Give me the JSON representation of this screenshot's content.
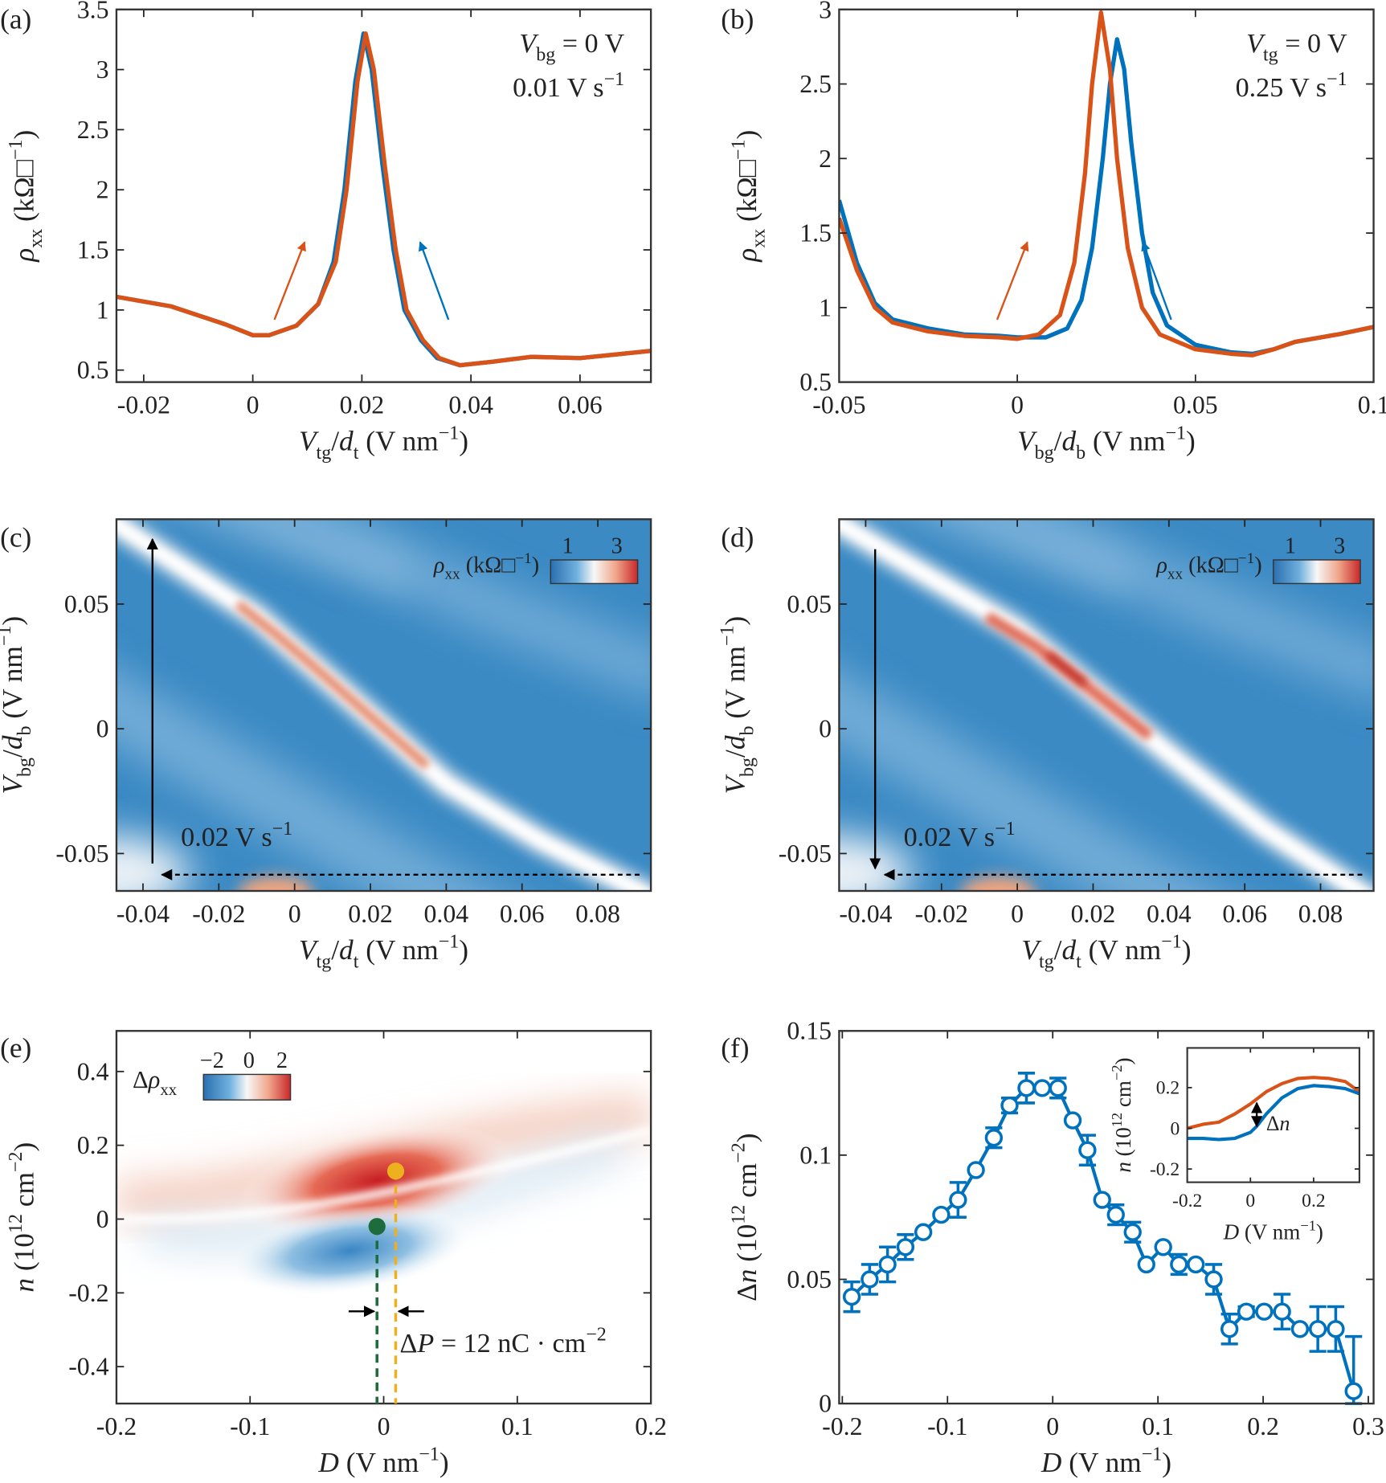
{
  "figure": {
    "panel_labels": [
      "(a)",
      "(b)",
      "(c)",
      "(d)",
      "(e)",
      "(f)"
    ]
  },
  "chart_data": [
    {
      "id": "a",
      "type": "line",
      "xlim": [
        -0.025,
        0.073
      ],
      "ylim": [
        0.4,
        3.5
      ],
      "xticks": [
        -0.02,
        0,
        0.02,
        0.04,
        0.06
      ],
      "xtick_labels": [
        "-0.02",
        "0",
        "0.02",
        "0.04",
        "0.06"
      ],
      "yticks": [
        0.5,
        1,
        1.5,
        2,
        2.5,
        3,
        3.5
      ],
      "ytick_labels": [
        "0.5",
        "1",
        "1.5",
        "2",
        "2.5",
        "3",
        "3.5"
      ],
      "xlabel": [
        [
          "V",
          "i"
        ],
        [
          "tg",
          "sub"
        ],
        [
          "/",
          ""
        ],
        [
          "d",
          "i"
        ],
        [
          "t",
          "sub"
        ],
        [
          "  (V nm",
          ""
        ],
        [
          "−1",
          "sup"
        ],
        [
          ")",
          ""
        ]
      ],
      "ylabel": [
        [
          "ρ",
          "i"
        ],
        [
          "xx",
          "sub"
        ],
        [
          "  (kΩ□",
          ""
        ],
        [
          "−1",
          "sup"
        ],
        [
          ")",
          ""
        ]
      ],
      "annotations": [
        [
          [
            "V",
            "i"
          ],
          [
            "bg",
            "sub"
          ],
          [
            " = 0 V",
            ""
          ]
        ],
        [
          [
            "0.01 V s",
            ""
          ],
          [
            "−1",
            "sup"
          ]
        ]
      ],
      "series": [
        {
          "color": "#0072BD",
          "x": [
            -0.025,
            -0.015,
            -0.005,
            0,
            0.003,
            0.008,
            0.012,
            0.0148,
            0.0168,
            0.0188,
            0.0203,
            0.0218,
            0.0238,
            0.0258,
            0.0278,
            0.0308,
            0.0338,
            0.038,
            0.044,
            0.051,
            0.06,
            0.073
          ],
          "y": [
            1.11,
            1.03,
            0.88,
            0.79,
            0.79,
            0.87,
            1.05,
            1.4,
            2.0,
            2.9,
            3.3,
            3.0,
            2.2,
            1.5,
            1.0,
            0.75,
            0.6,
            0.54,
            0.57,
            0.61,
            0.6,
            0.66
          ]
        },
        {
          "color": "#D95319",
          "x": [
            -0.025,
            -0.015,
            -0.005,
            0,
            0.003,
            0.008,
            0.012,
            0.0152,
            0.0172,
            0.0192,
            0.0207,
            0.0222,
            0.0242,
            0.0262,
            0.0282,
            0.0312,
            0.0342,
            0.038,
            0.044,
            0.051,
            0.06,
            0.073
          ],
          "y": [
            1.11,
            1.03,
            0.88,
            0.79,
            0.79,
            0.87,
            1.05,
            1.4,
            2.0,
            2.9,
            3.3,
            3.0,
            2.2,
            1.5,
            1.0,
            0.75,
            0.6,
            0.54,
            0.57,
            0.61,
            0.6,
            0.66
          ]
        }
      ]
    },
    {
      "id": "b",
      "type": "line",
      "xlim": [
        -0.05,
        0.1
      ],
      "ylim": [
        0.5,
        3
      ],
      "xticks": [
        -0.05,
        0,
        0.05,
        0.1
      ],
      "xtick_labels": [
        "-0.05",
        "0",
        "0.05",
        "0.1"
      ],
      "yticks": [
        0.5,
        1,
        1.5,
        2,
        2.5,
        3
      ],
      "ytick_labels": [
        "0.5",
        "1",
        "1.5",
        "2",
        "2.5",
        "3"
      ],
      "xlabel": [
        [
          "V",
          "i"
        ],
        [
          "bg",
          "sub"
        ],
        [
          "/",
          ""
        ],
        [
          "d",
          "i"
        ],
        [
          "b",
          "sub"
        ],
        [
          "  (V nm",
          ""
        ],
        [
          "−1",
          "sup"
        ],
        [
          ")",
          ""
        ]
      ],
      "ylabel": [
        [
          "ρ",
          "i"
        ],
        [
          "xx",
          "sub"
        ],
        [
          "  (kΩ□",
          ""
        ],
        [
          "−1",
          "sup"
        ],
        [
          ")",
          ""
        ]
      ],
      "annotations": [
        [
          [
            "V",
            "i"
          ],
          [
            "tg",
            "sub"
          ],
          [
            " = 0 V",
            ""
          ]
        ],
        [
          [
            "0.25 V s",
            ""
          ],
          [
            "−1",
            "sup"
          ]
        ]
      ],
      "series": [
        {
          "color": "#0072BD",
          "x": [
            -0.05,
            -0.045,
            -0.04,
            -0.035,
            -0.025,
            -0.015,
            -0.005,
            0,
            0.008,
            0.014,
            0.018,
            0.021,
            0.024,
            0.026,
            0.028,
            0.03,
            0.032,
            0.035,
            0.038,
            0.042,
            0.05,
            0.06,
            0.066,
            0.072,
            0.078,
            0.09,
            0.1
          ],
          "y": [
            1.72,
            1.3,
            1.03,
            0.92,
            0.86,
            0.82,
            0.81,
            0.8,
            0.8,
            0.86,
            1.05,
            1.4,
            2.0,
            2.5,
            2.8,
            2.6,
            2.1,
            1.5,
            1.1,
            0.88,
            0.75,
            0.7,
            0.69,
            0.72,
            0.77,
            0.82,
            0.87
          ]
        },
        {
          "color": "#D95319",
          "x": [
            -0.05,
            -0.045,
            -0.04,
            -0.035,
            -0.025,
            -0.015,
            -0.005,
            0,
            0.006,
            0.012,
            0.016,
            0.019,
            0.021,
            0.0235,
            0.026,
            0.028,
            0.031,
            0.035,
            0.04,
            0.05,
            0.06,
            0.066,
            0.072,
            0.078,
            0.09,
            0.1
          ],
          "y": [
            1.6,
            1.25,
            1.0,
            0.9,
            0.84,
            0.81,
            0.8,
            0.79,
            0.82,
            0.95,
            1.3,
            1.9,
            2.5,
            2.98,
            2.6,
            2.0,
            1.4,
            1.0,
            0.82,
            0.72,
            0.69,
            0.68,
            0.72,
            0.77,
            0.82,
            0.87
          ]
        }
      ]
    },
    {
      "id": "c",
      "type": "heatmap",
      "xlim": [
        -0.047,
        0.094
      ],
      "ylim": [
        -0.065,
        0.084
      ],
      "xticks": [
        -0.04,
        -0.02,
        0,
        0.02,
        0.04,
        0.06,
        0.08
      ],
      "xtick_labels": [
        "-0.04",
        "-0.02",
        "0",
        "0.02",
        "0.04",
        "0.06",
        "0.08"
      ],
      "yticks": [
        -0.05,
        0,
        0.05
      ],
      "ytick_labels": [
        "-0.05",
        "0",
        "0.05"
      ],
      "xlabel": [
        [
          "V",
          "i"
        ],
        [
          "tg",
          "sub"
        ],
        [
          "/",
          ""
        ],
        [
          "d",
          "i"
        ],
        [
          "t",
          "sub"
        ],
        [
          "  (V nm",
          ""
        ],
        [
          "−1",
          "sup"
        ],
        [
          ")",
          ""
        ]
      ],
      "ylabel": [
        [
          "V",
          "i"
        ],
        [
          "bg",
          "sub"
        ],
        [
          "/",
          ""
        ],
        [
          "d",
          "i"
        ],
        [
          "b",
          "sub"
        ],
        [
          "  (V nm",
          ""
        ],
        [
          "−1",
          "sup"
        ],
        [
          ")",
          ""
        ]
      ],
      "colorbar": {
        "range": [
          1,
          3
        ],
        "tick_labels": [
          "1",
          "3"
        ],
        "label": [
          [
            "ρ",
            "i"
          ],
          [
            "xx",
            "sub"
          ],
          [
            " (kΩ□",
            ""
          ],
          [
            "−1",
            "sup"
          ],
          [
            ")",
            ""
          ]
        ]
      },
      "annotations": [
        [
          [
            "0.02 V s",
            ""
          ],
          [
            "−1",
            "sup"
          ]
        ]
      ],
      "sweep_direction": "up"
    },
    {
      "id": "d",
      "type": "heatmap",
      "xlim": [
        -0.047,
        0.094
      ],
      "ylim": [
        -0.065,
        0.084
      ],
      "xticks": [
        -0.04,
        -0.02,
        0,
        0.02,
        0.04,
        0.06,
        0.08
      ],
      "xtick_labels": [
        "-0.04",
        "-0.02",
        "0",
        "0.02",
        "0.04",
        "0.06",
        "0.08"
      ],
      "yticks": [
        -0.05,
        0,
        0.05
      ],
      "ytick_labels": [
        "-0.05",
        "0",
        "0.05"
      ],
      "xlabel": [
        [
          "V",
          "i"
        ],
        [
          "tg",
          "sub"
        ],
        [
          "/",
          ""
        ],
        [
          "d",
          "i"
        ],
        [
          "t",
          "sub"
        ],
        [
          "  (V nm",
          ""
        ],
        [
          "−1",
          "sup"
        ],
        [
          ")",
          ""
        ]
      ],
      "ylabel": [
        [
          "V",
          "i"
        ],
        [
          "bg",
          "sub"
        ],
        [
          "/",
          ""
        ],
        [
          "d",
          "i"
        ],
        [
          "b",
          "sub"
        ],
        [
          "  (V nm",
          ""
        ],
        [
          "−1",
          "sup"
        ],
        [
          ")",
          ""
        ]
      ],
      "colorbar": {
        "range": [
          1,
          3
        ],
        "tick_labels": [
          "1",
          "3"
        ],
        "label": [
          [
            "ρ",
            "i"
          ],
          [
            "xx",
            "sub"
          ],
          [
            " (kΩ□",
            ""
          ],
          [
            "−1",
            "sup"
          ],
          [
            ")",
            ""
          ]
        ]
      },
      "annotations": [
        [
          [
            "0.02 V s",
            ""
          ],
          [
            "−1",
            "sup"
          ]
        ]
      ],
      "sweep_direction": "down"
    },
    {
      "id": "e",
      "type": "heatmap",
      "xlim": [
        -0.2,
        0.2
      ],
      "ylim": [
        -0.5,
        0.51
      ],
      "xticks": [
        -0.2,
        -0.1,
        0,
        0.1,
        0.2
      ],
      "xtick_labels": [
        "-0.2",
        "-0.1",
        "0",
        "0.1",
        "0.2"
      ],
      "yticks": [
        -0.4,
        -0.2,
        0,
        0.2,
        0.4
      ],
      "ytick_labels": [
        "-0.4",
        "-0.2",
        "0",
        "0.2",
        "0.4"
      ],
      "xlabel": [
        [
          "D",
          "i"
        ],
        [
          "  (V nm",
          ""
        ],
        [
          "−1",
          "sup"
        ],
        [
          ")",
          ""
        ]
      ],
      "ylabel": [
        [
          "n",
          "i"
        ],
        [
          "  (10",
          ""
        ],
        [
          "12",
          "sup"
        ],
        [
          "  cm",
          ""
        ],
        [
          "−2",
          "sup"
        ],
        [
          ")",
          ""
        ]
      ],
      "colorbar": {
        "range": [
          -2,
          2
        ],
        "tick_labels": [
          "−2",
          "0",
          "2"
        ],
        "label": [
          [
            "Δ",
            ""
          ],
          [
            "ρ",
            "i"
          ],
          [
            "xx",
            "sub"
          ]
        ]
      },
      "annotations": [
        [
          [
            "Δ",
            ""
          ],
          [
            "P",
            "i"
          ],
          [
            " = 12 nC · cm",
            ""
          ],
          [
            "−2",
            "sup"
          ]
        ]
      ],
      "markers": [
        {
          "color": "#EDB120",
          "D": 0.009,
          "n": 0.13
        },
        {
          "color": "#1E6B3C",
          "D": -0.005,
          "n": -0.02
        }
      ]
    },
    {
      "id": "f",
      "type": "line",
      "xlim": [
        -0.203,
        0.305
      ],
      "ylim": [
        0,
        0.15
      ],
      "xticks": [
        -0.2,
        -0.1,
        0,
        0.1,
        0.2,
        0.3
      ],
      "xtick_labels": [
        "-0.2",
        "-0.1",
        "0",
        "0.1",
        "0.2",
        "0.3"
      ],
      "yticks": [
        0,
        0.05,
        0.1,
        0.15
      ],
      "ytick_labels": [
        "0",
        "0.05",
        "0.1",
        "0.15"
      ],
      "xlabel": [
        [
          "D",
          "i"
        ],
        [
          "  (V nm",
          ""
        ],
        [
          "−1",
          "sup"
        ],
        [
          ")",
          ""
        ]
      ],
      "ylabel": [
        [
          "Δ",
          ""
        ],
        [
          "n",
          "i"
        ],
        [
          "  (10",
          ""
        ],
        [
          "12",
          "sup"
        ],
        [
          "  cm",
          ""
        ],
        [
          "−2",
          "sup"
        ],
        [
          ")",
          ""
        ]
      ],
      "series": [
        {
          "color": "#0072BD",
          "x": [
            -0.191,
            -0.174,
            -0.157,
            -0.14,
            -0.123,
            -0.106,
            -0.09,
            -0.073,
            -0.056,
            -0.041,
            -0.025,
            -0.01,
            0.005,
            0.019,
            0.033,
            0.047,
            0.06,
            0.076,
            0.089,
            0.105,
            0.12,
            0.136,
            0.153,
            0.168,
            0.184,
            0.201,
            0.218,
            0.235,
            0.252,
            0.269,
            0.286
          ],
          "y": [
            0.043,
            0.05,
            0.056,
            0.063,
            0.069,
            0.076,
            0.082,
            0.094,
            0.107,
            0.12,
            0.127,
            0.127,
            0.127,
            0.114,
            0.102,
            0.082,
            0.076,
            0.069,
            0.056,
            0.063,
            0.056,
            0.056,
            0.05,
            0.03,
            0.037,
            0.037,
            0.037,
            0.03,
            0.03,
            0.03,
            0.005
          ],
          "err": [
            0.006,
            0.006,
            0.007,
            0.005,
            0,
            0,
            0.007,
            0,
            0.004,
            0.003,
            0.006,
            0,
            0.004,
            0,
            0.006,
            0,
            0.004,
            0.004,
            0,
            0,
            0.004,
            0,
            0.006,
            0.006,
            0.002,
            0,
            0.007,
            0,
            0.009,
            0.009,
            0.022
          ]
        }
      ],
      "inset": {
        "xlim": [
          -0.2,
          0.345
        ],
        "ylim": [
          -0.265,
          0.395
        ],
        "xticks": [
          -0.2,
          0,
          0.2
        ],
        "xtick_labels": [
          "-0.2",
          "0",
          "0.2"
        ],
        "yticks": [
          -0.2,
          0,
          0.2
        ],
        "ytick_labels": [
          "-0.2",
          "0",
          "0.2"
        ],
        "xlabel": [
          [
            "D",
            "i"
          ],
          [
            " (V nm",
            ""
          ],
          [
            "−1",
            "sup"
          ],
          [
            ")",
            ""
          ]
        ],
        "ylabel": [
          [
            "n",
            "i"
          ],
          [
            " (10",
            ""
          ],
          [
            "12",
            "sup"
          ],
          [
            " cm",
            ""
          ],
          [
            "−2",
            "sup"
          ],
          [
            ")",
            ""
          ]
        ],
        "annotation": [
          [
            "Δ",
            ""
          ],
          [
            "n",
            "i"
          ]
        ],
        "series": [
          {
            "color": "#D95319",
            "x": [
              -0.2,
              -0.15,
              -0.1,
              -0.05,
              0,
              0.05,
              0.1,
              0.15,
              0.2,
              0.25,
              0.3,
              0.345
            ],
            "y": [
              0.0,
              0.02,
              0.03,
              0.07,
              0.12,
              0.18,
              0.22,
              0.245,
              0.25,
              0.245,
              0.23,
              0.18
            ]
          },
          {
            "color": "#0072BD",
            "x": [
              -0.2,
              -0.15,
              -0.1,
              -0.05,
              0,
              0.02,
              0.05,
              0.1,
              0.15,
              0.2,
              0.25,
              0.3,
              0.345
            ],
            "y": [
              -0.05,
              -0.05,
              -0.055,
              -0.05,
              -0.02,
              0.01,
              0.07,
              0.15,
              0.195,
              0.21,
              0.205,
              0.195,
              0.17
            ]
          }
        ]
      }
    }
  ]
}
